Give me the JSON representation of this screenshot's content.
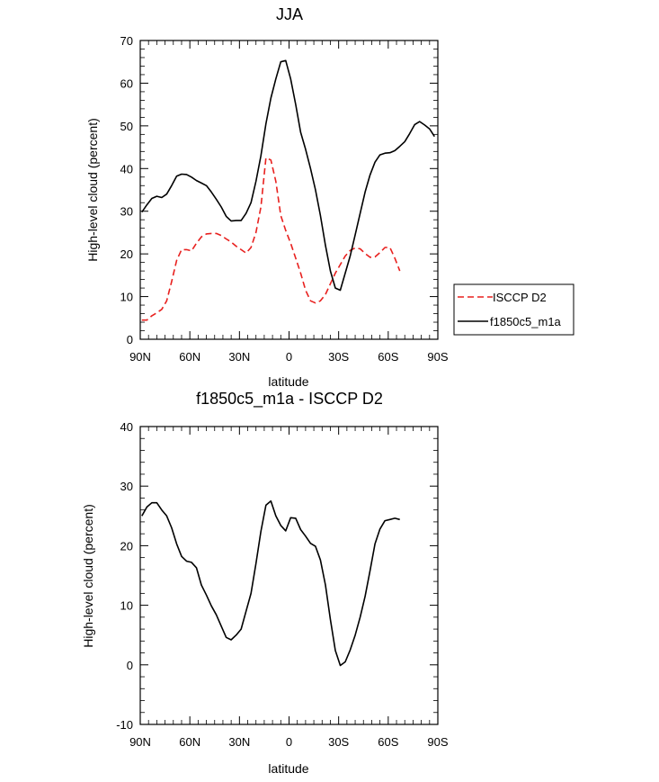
{
  "chart_data": [
    {
      "type": "line",
      "title": "JJA",
      "xlabel": "latitude",
      "ylabel": "High-level cloud (percent)",
      "xlim": [
        90,
        -90
      ],
      "ylim": [
        0,
        70
      ],
      "xticks": [
        {
          "value": 90,
          "label": "90N"
        },
        {
          "value": 60,
          "label": "60N"
        },
        {
          "value": 30,
          "label": "30N"
        },
        {
          "value": 0,
          "label": "0"
        },
        {
          "value": -30,
          "label": "30S"
        },
        {
          "value": -60,
          "label": "60S"
        },
        {
          "value": -90,
          "label": "90S"
        }
      ],
      "yticks": [
        0,
        10,
        20,
        30,
        40,
        50,
        60,
        70
      ],
      "legend_position": "right",
      "series": [
        {
          "name": "ISCCP D2",
          "color": "#e8211f",
          "dash": true,
          "x": [
            89,
            86,
            83,
            80,
            77,
            74,
            71,
            68,
            65,
            62,
            59,
            56,
            53,
            50,
            47,
            44,
            41,
            38,
            35,
            32,
            29,
            26,
            23,
            20,
            17,
            14,
            11,
            8,
            5,
            2,
            -1,
            -4,
            -7,
            -10,
            -13,
            -16,
            -19,
            -22,
            -25,
            -28,
            -31,
            -34,
            -37,
            -40,
            -43,
            -46,
            -49,
            -52,
            -55,
            -58,
            -61,
            -64,
            -67
          ],
          "y": [
            4.5,
            4.5,
            5.5,
            6.2,
            7.0,
            9.0,
            13.5,
            18.5,
            21.0,
            21.0,
            20.7,
            22.5,
            24.0,
            24.7,
            24.8,
            24.8,
            24.3,
            23.5,
            22.8,
            21.8,
            21.0,
            20.2,
            21.5,
            25.0,
            31.0,
            42.5,
            42.0,
            37.0,
            29.0,
            25.5,
            22.5,
            19.0,
            15.5,
            11.5,
            9.0,
            8.5,
            9.0,
            10.5,
            13.0,
            15.5,
            17.5,
            19.5,
            20.8,
            21.4,
            21.2,
            20.1,
            19.2,
            19.3,
            20.3,
            21.5,
            21.5,
            19.0,
            16.0
          ]
        },
        {
          "name": "f1850c5_m1a",
          "color": "#000000",
          "dash": false,
          "x": [
            89,
            86,
            83,
            80,
            77,
            74,
            71,
            68,
            65,
            62,
            59,
            56,
            53,
            50,
            47,
            44,
            41,
            38,
            35,
            32,
            29,
            26,
            23,
            20,
            17,
            14,
            11,
            8,
            5,
            2,
            -1,
            -4,
            -7,
            -10,
            -13,
            -16,
            -19,
            -22,
            -25,
            -28,
            -31,
            -34,
            -37,
            -40,
            -43,
            -46,
            -49,
            -52,
            -55,
            -58,
            -61,
            -64,
            -67,
            -70,
            -73,
            -76,
            -79,
            -82,
            -85,
            -88
          ],
          "y": [
            29.8,
            31.5,
            33.0,
            33.5,
            33.2,
            34.0,
            36.0,
            38.2,
            38.7,
            38.6,
            38.0,
            37.2,
            36.6,
            36.0,
            34.5,
            32.8,
            31.0,
            28.8,
            27.7,
            27.8,
            27.8,
            29.5,
            32.0,
            37.0,
            43.0,
            50.5,
            56.5,
            61.0,
            65.0,
            65.3,
            61.0,
            55.0,
            48.5,
            44.5,
            40.0,
            35.0,
            29.0,
            22.0,
            16.0,
            12.0,
            11.5,
            15.5,
            19.5,
            24.5,
            29.5,
            34.5,
            38.5,
            41.5,
            43.2,
            43.6,
            43.7,
            44.2,
            45.2,
            46.3,
            48.2,
            50.3,
            51.0,
            50.2,
            49.3,
            47.5
          ]
        }
      ]
    },
    {
      "type": "line",
      "title": "f1850c5_m1a - ISCCP D2",
      "xlabel": "latitude",
      "ylabel": "High-level cloud (percent)",
      "xlim": [
        90,
        -90
      ],
      "ylim": [
        -10,
        40
      ],
      "xticks": [
        {
          "value": 90,
          "label": "90N"
        },
        {
          "value": 60,
          "label": "60N"
        },
        {
          "value": 30,
          "label": "30N"
        },
        {
          "value": 0,
          "label": "0"
        },
        {
          "value": -30,
          "label": "30S"
        },
        {
          "value": -60,
          "label": "60S"
        },
        {
          "value": -90,
          "label": "90S"
        }
      ],
      "yticks": [
        -10,
        0,
        10,
        20,
        30,
        40
      ],
      "series": [
        {
          "name": "f1850c5_m1a - ISCCP D2",
          "color": "#000000",
          "dash": false,
          "x": [
            89,
            86,
            83,
            80,
            77,
            74,
            71,
            68,
            65,
            62,
            59,
            56,
            53,
            50,
            47,
            44,
            41,
            38,
            35,
            32,
            29,
            26,
            23,
            20,
            17,
            14,
            11,
            8,
            5,
            2,
            -1,
            -4,
            -7,
            -10,
            -13,
            -16,
            -19,
            -22,
            -25,
            -28,
            -31,
            -34,
            -37,
            -40,
            -43,
            -46,
            -49,
            -52,
            -55,
            -58,
            -61,
            -64,
            -67
          ],
          "y": [
            25.0,
            26.5,
            27.2,
            27.2,
            26.0,
            25.0,
            23.0,
            20.3,
            18.2,
            17.4,
            17.2,
            16.3,
            13.4,
            11.7,
            9.9,
            8.4,
            6.5,
            4.6,
            4.2,
            5.0,
            6.0,
            9.0,
            12.0,
            17.0,
            22.4,
            26.8,
            27.5,
            25.0,
            23.4,
            22.5,
            24.7,
            24.6,
            22.7,
            21.6,
            20.4,
            19.9,
            17.6,
            13.4,
            7.6,
            2.4,
            -0.1,
            0.5,
            2.5,
            5.0,
            8.0,
            11.5,
            15.8,
            20.3,
            22.8,
            24.2,
            24.4,
            24.6,
            24.4
          ]
        }
      ]
    }
  ]
}
